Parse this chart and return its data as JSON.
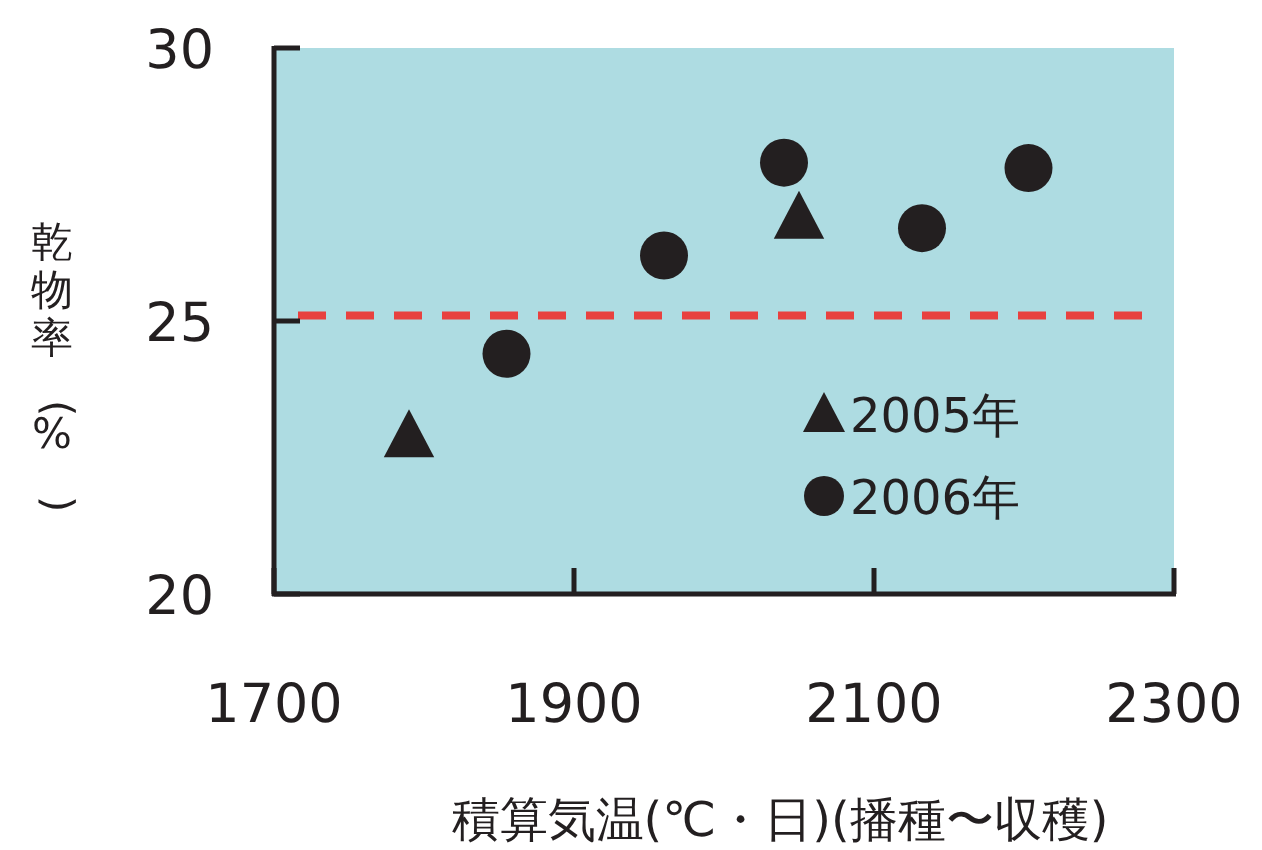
{
  "chart_data": {
    "type": "scatter",
    "xlabel": "積算気温(℃・日)(播種〜収穫)",
    "ylabel": "乾物率(%)",
    "xlim": [
      1700,
      2300
    ],
    "xticks": [
      1700,
      1900,
      2100,
      2300
    ],
    "ylim": [
      20,
      30
    ],
    "yticks": [
      20,
      25,
      30
    ],
    "grid": false,
    "legend": "bottom right",
    "series": [
      {
        "name": "2005年",
        "color": "#231f20",
        "marker": "triangle",
        "x": [
          1790,
          2050
        ],
        "values": [
          22.9,
          26.9
        ]
      },
      {
        "name": "2006年",
        "color": "#231f20",
        "marker": "circle",
        "x": [
          1855,
          1960,
          2040,
          2132,
          2203
        ],
        "values": [
          24.4,
          26.2,
          27.9,
          26.7,
          27.8
        ]
      }
    ],
    "ref_lines": [
      {
        "axis": "y",
        "value": 25.1,
        "label": null,
        "color": "#e8413f",
        "line_style": "dashed"
      }
    ]
  }
}
